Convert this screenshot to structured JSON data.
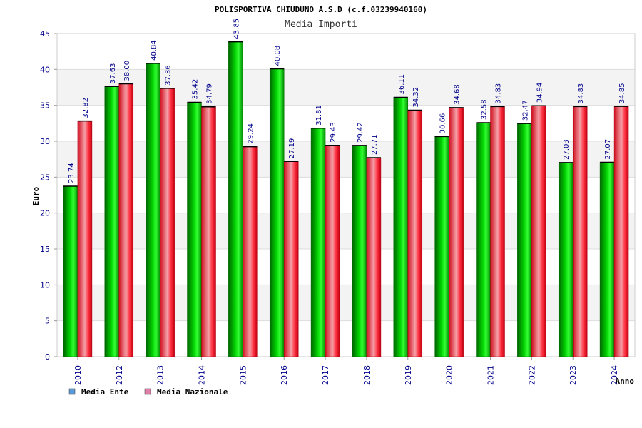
{
  "chart_data": {
    "type": "bar",
    "title": "POLISPORTIVA CHIUDUNO A.S.D (c.f.03239940160)",
    "subtitle": "Media Importi",
    "xlabel": "Anno",
    "ylabel": "Euro",
    "ylim": [
      0,
      45
    ],
    "yticks": [
      0,
      5,
      10,
      15,
      20,
      25,
      30,
      35,
      40,
      45
    ],
    "categories": [
      "2010",
      "2012",
      "2013",
      "2014",
      "2015",
      "2016",
      "2017",
      "2018",
      "2019",
      "2020",
      "2021",
      "2022",
      "2023",
      "2024"
    ],
    "series": [
      {
        "name": "Media Ente",
        "color": "#00b800",
        "legend_color": "#5b9bd5",
        "values": [
          23.74,
          37.63,
          40.84,
          35.42,
          43.85,
          40.08,
          31.81,
          29.42,
          36.11,
          30.66,
          32.58,
          32.47,
          27.03,
          27.07
        ],
        "labels": [
          "23.74",
          "37.63",
          "40.84",
          "35.42",
          "43.85",
          "40.08",
          "31.81",
          "29.42",
          "36.11",
          "30.66",
          "32.58",
          "32.47",
          "27.03",
          "27.07"
        ]
      },
      {
        "name": "Media Nazionale",
        "color": "#e8202a",
        "legend_color": "#e080a8",
        "values": [
          32.82,
          38.0,
          37.36,
          34.79,
          29.24,
          27.19,
          29.43,
          27.71,
          34.32,
          34.68,
          34.83,
          34.94,
          34.83,
          34.85
        ],
        "labels": [
          "32.82",
          "38.00",
          "37.36",
          "34.79",
          "29.24",
          "27.19",
          "29.43",
          "27.71",
          "34.32",
          "34.68",
          "34.83",
          "34.94",
          "34.83",
          "34.85"
        ]
      }
    ],
    "legend_position": "bottom-left",
    "grid": true
  }
}
